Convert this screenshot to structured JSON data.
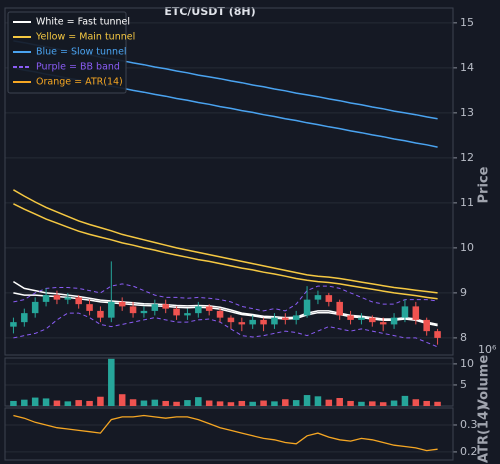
{
  "chart_data": [
    {
      "type": "candlestick",
      "title": "ETC/USDT (8H)",
      "ylabel": "Price",
      "ylim": [
        7.62,
        15.33
      ],
      "yticks": [
        8,
        9,
        10,
        11,
        12,
        13,
        14,
        15
      ],
      "grid": true,
      "legend": "upper left",
      "up_color": "#26a69a",
      "down_color": "#ef5350",
      "open": [
        8.25,
        8.35,
        8.55,
        8.8,
        8.95,
        8.85,
        8.9,
        8.75,
        8.6,
        8.45,
        8.8,
        8.7,
        8.55,
        8.6,
        8.75,
        8.65,
        8.5,
        8.55,
        8.7,
        8.6,
        8.45,
        8.35,
        8.3,
        8.4,
        8.3,
        8.45,
        8.4,
        8.5,
        8.85,
        8.95,
        8.8,
        8.5,
        8.4,
        8.45,
        8.35,
        8.3,
        8.45,
        8.7,
        8.4,
        8.15
      ],
      "high": [
        8.45,
        8.65,
        8.9,
        9.1,
        9.05,
        9.0,
        8.95,
        8.85,
        8.7,
        9.7,
        8.9,
        8.8,
        8.7,
        8.85,
        8.85,
        8.7,
        8.65,
        8.8,
        8.75,
        8.65,
        8.5,
        8.45,
        8.5,
        8.45,
        8.55,
        8.55,
        8.6,
        9.15,
        9.05,
        9.0,
        8.85,
        8.6,
        8.55,
        8.5,
        8.45,
        8.55,
        8.85,
        8.8,
        8.45,
        8.2
      ],
      "low": [
        8.1,
        8.25,
        8.45,
        8.7,
        8.75,
        8.75,
        8.65,
        8.5,
        8.35,
        8.35,
        8.6,
        8.45,
        8.45,
        8.5,
        8.55,
        8.4,
        8.4,
        8.45,
        8.5,
        8.35,
        8.2,
        8.15,
        8.2,
        8.15,
        8.2,
        8.3,
        8.3,
        8.45,
        8.75,
        8.7,
        8.4,
        8.3,
        8.3,
        8.25,
        8.15,
        8.2,
        8.35,
        8.3,
        8.05,
        7.85
      ],
      "close": [
        8.35,
        8.55,
        8.8,
        8.95,
        8.85,
        8.9,
        8.75,
        8.6,
        8.45,
        8.8,
        8.7,
        8.55,
        8.6,
        8.75,
        8.65,
        8.5,
        8.55,
        8.7,
        8.6,
        8.45,
        8.35,
        8.3,
        8.4,
        8.3,
        8.45,
        8.4,
        8.5,
        8.85,
        8.95,
        8.8,
        8.5,
        8.4,
        8.45,
        8.35,
        8.3,
        8.45,
        8.7,
        8.4,
        8.15,
        8.0
      ],
      "series": [
        {
          "name": "White = Fast tunnel",
          "color": "#ffffff",
          "dashed": false,
          "upper": [
            9.25,
            9.1,
            9.05,
            9.0,
            8.98,
            8.95,
            8.92,
            8.88,
            8.84,
            8.82,
            8.8,
            8.78,
            8.76,
            8.75,
            8.74,
            8.72,
            8.71,
            8.72,
            8.71,
            8.68,
            8.62,
            8.55,
            8.52,
            8.48,
            8.47,
            8.45,
            8.46,
            8.55,
            8.6,
            8.6,
            8.55,
            8.5,
            8.48,
            8.45,
            8.42,
            8.42,
            8.45,
            8.42,
            8.35,
            8.3
          ],
          "lower": [
            9.0,
            8.95,
            8.95,
            8.93,
            8.92,
            8.9,
            8.87,
            8.84,
            8.8,
            8.78,
            8.76,
            8.74,
            8.72,
            8.71,
            8.7,
            8.68,
            8.67,
            8.68,
            8.67,
            8.64,
            8.58,
            8.52,
            8.49,
            8.45,
            8.44,
            8.42,
            8.43,
            8.51,
            8.56,
            8.56,
            8.52,
            8.47,
            8.45,
            8.42,
            8.39,
            8.39,
            8.42,
            8.39,
            8.32,
            8.27
          ]
        },
        {
          "name": "Yellow = Main tunnel",
          "color": "#f5c842",
          "dashed": false,
          "upper": [
            11.29,
            11.15,
            11.02,
            10.9,
            10.8,
            10.7,
            10.6,
            10.52,
            10.45,
            10.38,
            10.3,
            10.24,
            10.18,
            10.12,
            10.06,
            10.0,
            9.95,
            9.9,
            9.85,
            9.8,
            9.75,
            9.7,
            9.65,
            9.6,
            9.55,
            9.5,
            9.45,
            9.4,
            9.37,
            9.35,
            9.32,
            9.28,
            9.24,
            9.2,
            9.16,
            9.12,
            9.09,
            9.06,
            9.03,
            9.0
          ],
          "lower": [
            10.98,
            10.86,
            10.75,
            10.64,
            10.55,
            10.46,
            10.37,
            10.3,
            10.24,
            10.18,
            10.11,
            10.06,
            10.0,
            9.95,
            9.89,
            9.84,
            9.79,
            9.74,
            9.7,
            9.65,
            9.6,
            9.55,
            9.51,
            9.46,
            9.42,
            9.37,
            9.32,
            9.28,
            9.25,
            9.23,
            9.2,
            9.16,
            9.12,
            9.08,
            9.04,
            9.0,
            8.97,
            8.94,
            8.9,
            8.87
          ]
        },
        {
          "name": "Blue = Slow tunnel",
          "color": "#4aa3f0",
          "dashed": false,
          "upper": [
            14.6,
            14.56,
            14.51,
            14.47,
            14.42,
            14.38,
            14.33,
            14.29,
            14.24,
            14.2,
            14.16,
            14.11,
            14.07,
            14.02,
            13.98,
            13.93,
            13.89,
            13.84,
            13.8,
            13.76,
            13.71,
            13.67,
            13.62,
            13.58,
            13.53,
            13.49,
            13.44,
            13.4,
            13.36,
            13.31,
            13.27,
            13.22,
            13.18,
            13.13,
            13.09,
            13.04,
            13.0,
            12.96,
            12.91,
            12.87
          ],
          "lower": [
            14.0,
            13.95,
            13.91,
            13.86,
            13.82,
            13.77,
            13.73,
            13.68,
            13.64,
            13.59,
            13.55,
            13.5,
            13.46,
            13.41,
            13.37,
            13.32,
            13.28,
            13.23,
            13.19,
            13.14,
            13.1,
            13.05,
            13.01,
            12.96,
            12.92,
            12.87,
            12.83,
            12.78,
            12.74,
            12.69,
            12.65,
            12.6,
            12.56,
            12.51,
            12.47,
            12.42,
            12.38,
            12.33,
            12.29,
            12.24
          ]
        },
        {
          "name": "Purple = BB band",
          "color": "#8a5cf5",
          "dashed": true,
          "upper": [
            8.8,
            8.85,
            9.0,
            9.1,
            9.12,
            9.12,
            9.1,
            9.05,
            9.0,
            9.15,
            9.2,
            9.15,
            9.05,
            8.95,
            8.9,
            8.9,
            8.88,
            8.9,
            8.88,
            8.85,
            8.8,
            8.7,
            8.65,
            8.6,
            8.65,
            8.6,
            8.75,
            9.05,
            9.15,
            9.15,
            9.1,
            9.0,
            8.9,
            8.8,
            8.75,
            8.75,
            8.85,
            8.85,
            8.85,
            8.82
          ],
          "lower": [
            8.0,
            8.05,
            8.1,
            8.2,
            8.4,
            8.55,
            8.55,
            8.45,
            8.3,
            8.25,
            8.3,
            8.35,
            8.4,
            8.45,
            8.4,
            8.35,
            8.35,
            8.4,
            8.42,
            8.35,
            8.2,
            8.05,
            8.02,
            8.05,
            8.1,
            8.15,
            8.12,
            8.05,
            8.15,
            8.25,
            8.2,
            8.15,
            8.2,
            8.15,
            8.1,
            8.05,
            8.0,
            8.0,
            7.9,
            7.8
          ]
        }
      ]
    },
    {
      "type": "bar",
      "ylabel": "Volume",
      "offset_label": "10⁶",
      "ylim": [
        0,
        11.4
      ],
      "yticks": [
        5,
        10
      ],
      "grid": true,
      "values": [
        1.2,
        1.5,
        2.0,
        1.8,
        1.3,
        1.1,
        1.4,
        1.2,
        2.2,
        11.2,
        2.8,
        1.6,
        1.3,
        1.5,
        1.2,
        1.0,
        1.4,
        2.1,
        1.3,
        1.1,
        0.9,
        1.2,
        1.0,
        1.3,
        1.1,
        1.6,
        1.4,
        2.6,
        2.3,
        1.5,
        1.9,
        1.2,
        1.0,
        1.1,
        0.9,
        1.3,
        2.4,
        1.6,
        1.2,
        1.0
      ]
    },
    {
      "type": "line",
      "ylabel": "ATR(14)",
      "ylim": [
        0.17,
        0.363
      ],
      "yticks": [
        0.2,
        0.3
      ],
      "grid": true,
      "series": [
        {
          "name": "Orange = ATR(14)",
          "color": "#f5a623",
          "values": [
            0.335,
            0.325,
            0.31,
            0.3,
            0.29,
            0.285,
            0.28,
            0.275,
            0.27,
            0.32,
            0.33,
            0.33,
            0.335,
            0.33,
            0.325,
            0.33,
            0.33,
            0.32,
            0.305,
            0.29,
            0.28,
            0.27,
            0.26,
            0.25,
            0.245,
            0.235,
            0.23,
            0.26,
            0.27,
            0.255,
            0.245,
            0.24,
            0.25,
            0.245,
            0.235,
            0.225,
            0.22,
            0.215,
            0.205,
            0.21
          ]
        }
      ]
    }
  ]
}
